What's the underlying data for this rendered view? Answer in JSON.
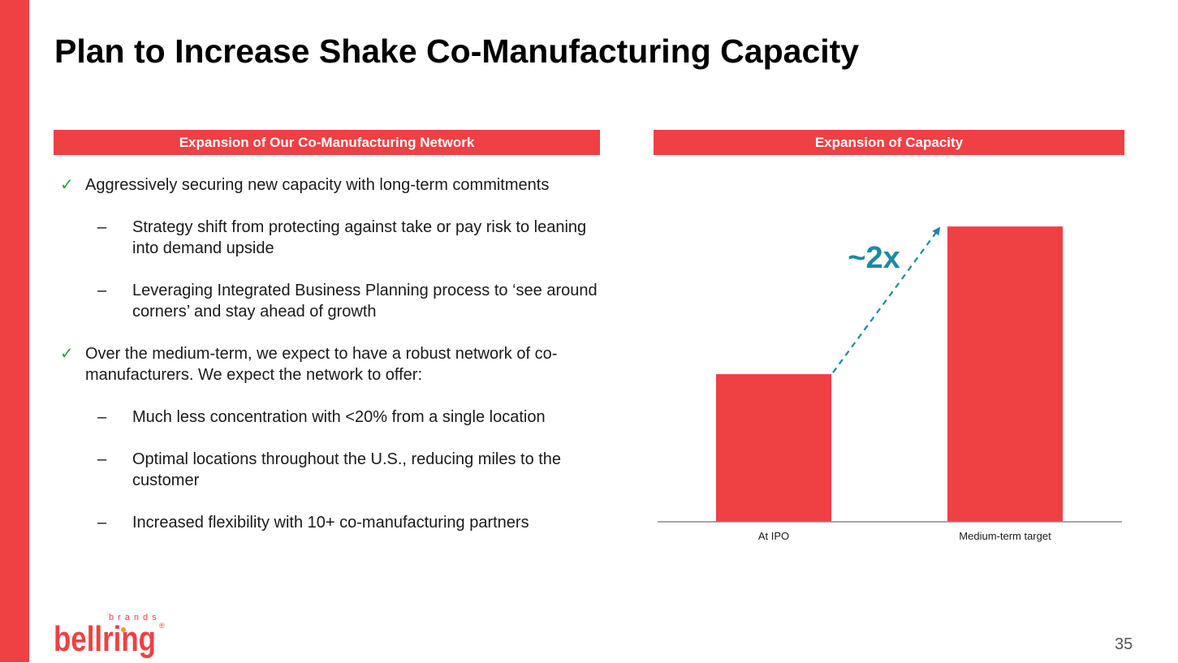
{
  "slide": {
    "title": "Plan to Increase Shake Co-Manufacturing Capacity",
    "page_number": "35",
    "accent_color": "#ef4044"
  },
  "left_panel": {
    "header": "Expansion of Our Co-Manufacturing Network",
    "bullets": [
      {
        "text": "Aggressively securing new capacity with long-term commitments",
        "subs": [
          "Strategy shift from protecting against take or pay risk to leaning into demand upside",
          "Leveraging Integrated Business Planning process to ‘see around corners’ and stay ahead of growth"
        ]
      },
      {
        "text": "Over the medium-term, we expect to have a robust network of co-manufacturers. We expect the network to offer:",
        "subs": [
          "Much less concentration with <20% from a single location",
          "Optimal locations throughout the U.S., reducing miles to the customer",
          "Increased flexibility with 10+ co-manufacturing partners"
        ]
      }
    ]
  },
  "right_panel": {
    "header": "Expansion of Capacity"
  },
  "chart_data": {
    "type": "bar",
    "title": "Expansion of Capacity",
    "categories": [
      "At IPO",
      "Medium-term target"
    ],
    "values": [
      1,
      2
    ],
    "ylim": [
      0,
      2.05
    ],
    "xlabel": "",
    "ylabel": "",
    "grid": false,
    "bar_color": "#ef4044",
    "annotation": {
      "text": "~2x",
      "color": "#1a8aa3",
      "style": "dashed arrow from At IPO bar top to Medium-term target bar top"
    }
  },
  "logo": {
    "wordmark": "bellring",
    "subtitle": "brands",
    "registered": "®",
    "color": "#ef4044",
    "accent_color": "#f39a2a"
  }
}
